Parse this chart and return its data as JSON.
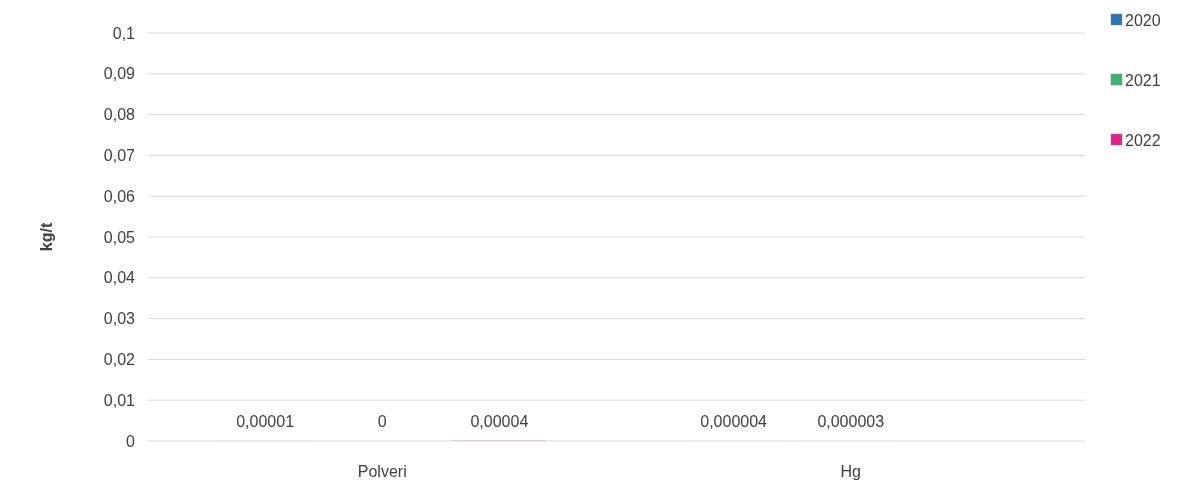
{
  "chart_data": {
    "type": "bar",
    "ylabel": "kg/t",
    "categories": [
      "Polveri",
      "Hg"
    ],
    "series": [
      {
        "name": "2020",
        "color": "#2e75b6",
        "values": [
          1e-05,
          4e-06
        ],
        "value_labels": [
          "0,00001",
          "0,000004"
        ]
      },
      {
        "name": "2021",
        "color": "#3cb371",
        "values": [
          0,
          3e-06
        ],
        "value_labels": [
          "0",
          "0,000003"
        ]
      },
      {
        "name": "2022",
        "color": "#e0218a",
        "values": [
          4e-05,
          null
        ],
        "value_labels": [
          "0,00004",
          null
        ]
      }
    ],
    "ylim": [
      0,
      0.1
    ],
    "yticks": [
      {
        "value": 0,
        "label": "0"
      },
      {
        "value": 0.01,
        "label": "0,01"
      },
      {
        "value": 0.02,
        "label": "0,02"
      },
      {
        "value": 0.03,
        "label": "0,03"
      },
      {
        "value": 0.04,
        "label": "0,04"
      },
      {
        "value": 0.05,
        "label": "0,05"
      },
      {
        "value": 0.06,
        "label": "0,06"
      },
      {
        "value": 0.07,
        "label": "0,07"
      },
      {
        "value": 0.08,
        "label": "0,08"
      },
      {
        "value": 0.09,
        "label": "0,09"
      },
      {
        "value": 0.1,
        "label": "0,1"
      }
    ],
    "grid": "y",
    "legend": "top right"
  }
}
